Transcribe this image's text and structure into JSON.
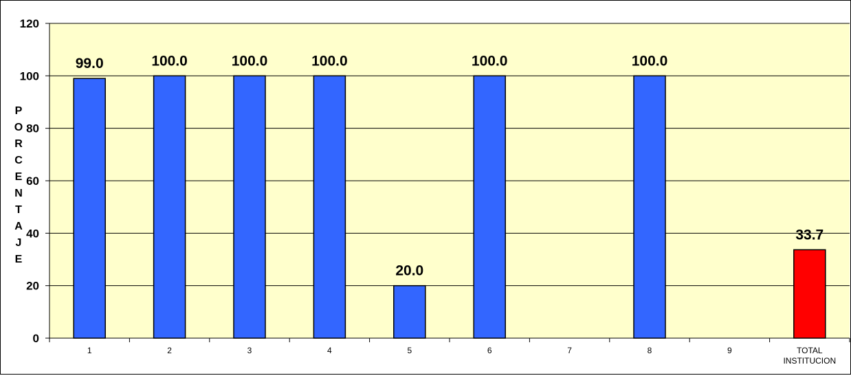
{
  "chart_data": {
    "type": "bar",
    "categories": [
      "1",
      "2",
      "3",
      "4",
      "5",
      "6",
      "7",
      "8",
      "9",
      [
        "TOTAL",
        "INSTITUCION"
      ]
    ],
    "values": [
      99.0,
      100.0,
      100.0,
      100.0,
      20.0,
      100.0,
      null,
      100.0,
      null,
      33.7
    ],
    "data_labels": [
      "99.0",
      "100.0",
      "100.0",
      "100.0",
      "20.0",
      "100.0",
      "",
      "100.0",
      "",
      "33.7"
    ],
    "bar_colors": [
      "#3366ff",
      "#3366ff",
      "#3366ff",
      "#3366ff",
      "#3366ff",
      "#3366ff",
      "#3366ff",
      "#3366ff",
      "#3366ff",
      "#ff0000"
    ],
    "ylabel": "PORCENTAJE",
    "ylim": [
      0,
      120
    ],
    "yticks": [
      0,
      20,
      40,
      60,
      80,
      100,
      120
    ],
    "grid": true,
    "plot_background": "#ffffcc"
  }
}
